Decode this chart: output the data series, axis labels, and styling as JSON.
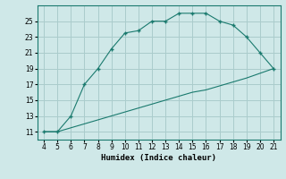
{
  "xlabel": "Humidex (Indice chaleur)",
  "line_color": "#1a7a6e",
  "bg_color": "#cfe8e8",
  "grid_color": "#aacccc",
  "upper_x": [
    4,
    5,
    6,
    7,
    8,
    9,
    10,
    11,
    12,
    13,
    14,
    15,
    16,
    17,
    18,
    19,
    20,
    21
  ],
  "upper_y": [
    11,
    11,
    13,
    17,
    19,
    21.5,
    23.5,
    23.8,
    25,
    25,
    26,
    26,
    26,
    25,
    24.5,
    23,
    21,
    19
  ],
  "lower_x": [
    4,
    5,
    6,
    7,
    8,
    9,
    10,
    11,
    12,
    13,
    14,
    15,
    16,
    17,
    18,
    19,
    20,
    21
  ],
  "lower_y": [
    11,
    11,
    11.5,
    12,
    12.5,
    13,
    13.5,
    14,
    14.5,
    15,
    15.5,
    16,
    16.3,
    16.8,
    17.3,
    17.8,
    18.4,
    19
  ],
  "xlim": [
    3.5,
    21.5
  ],
  "ylim": [
    10,
    27
  ],
  "xticks": [
    4,
    5,
    6,
    7,
    8,
    9,
    10,
    11,
    12,
    13,
    14,
    15,
    16,
    17,
    18,
    19,
    20,
    21
  ],
  "yticks": [
    11,
    13,
    15,
    17,
    19,
    21,
    23,
    25
  ],
  "marker": "+"
}
